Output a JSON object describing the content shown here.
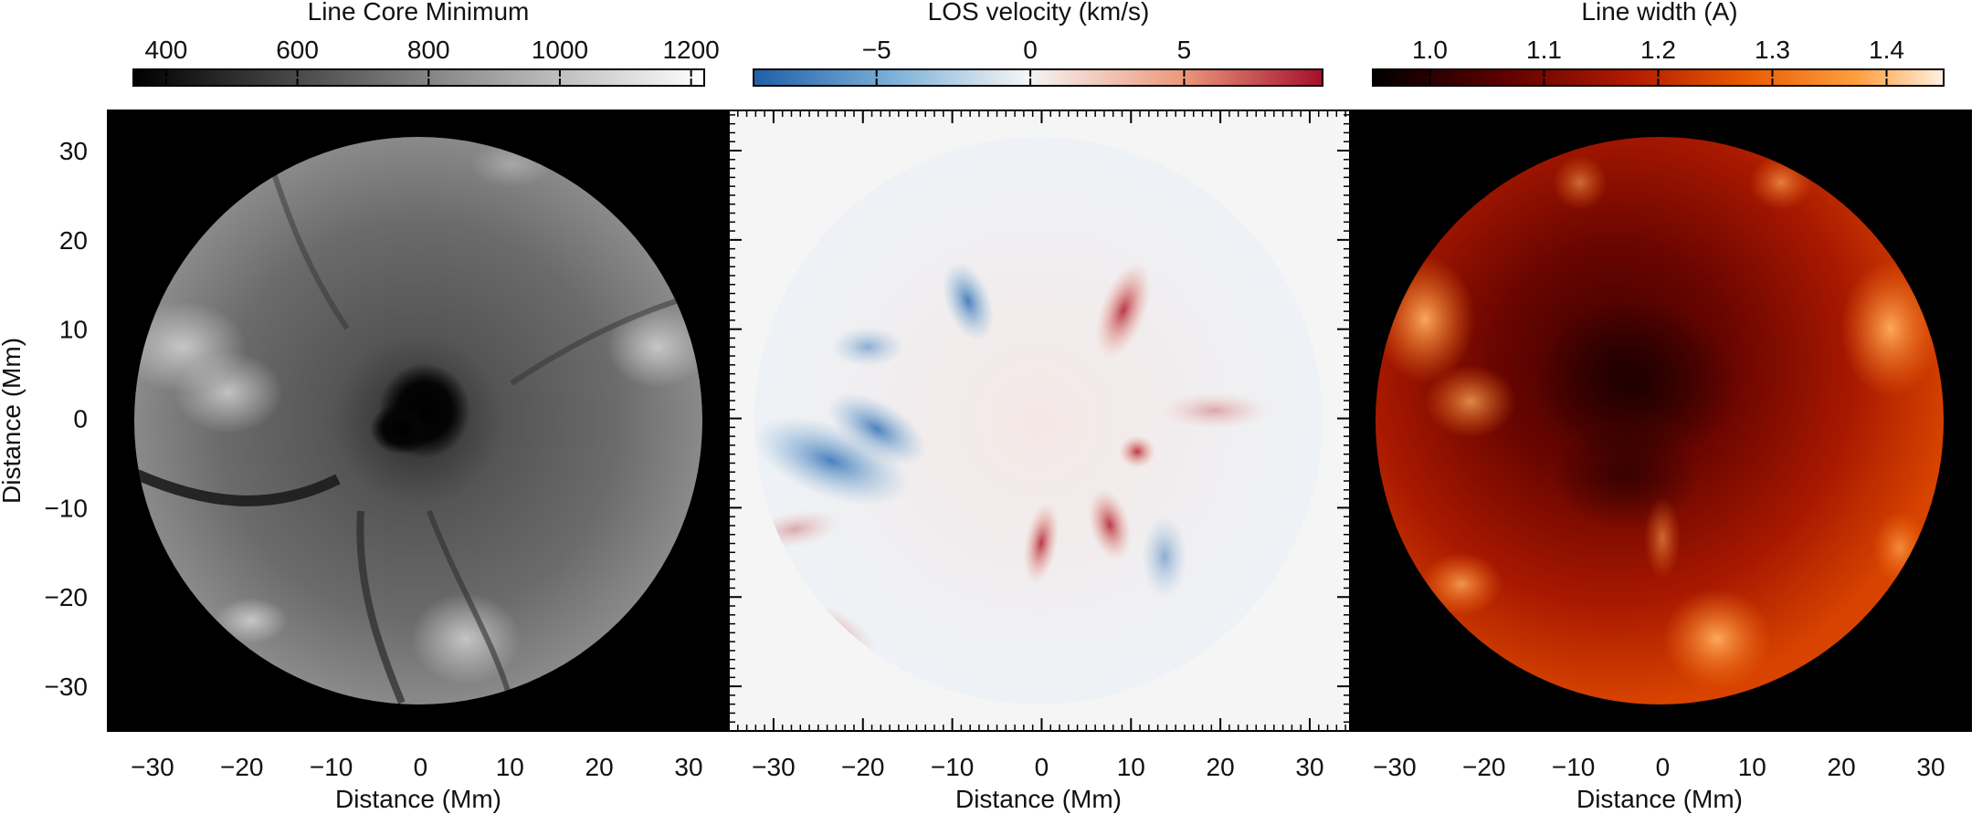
{
  "chart_data": [
    {
      "type": "heatmap",
      "title": "Line Core Minimum",
      "colormap": "gray",
      "colorbar": {
        "min": 350,
        "max": 1220,
        "ticks": [
          400,
          600,
          800,
          1000,
          1200
        ]
      },
      "xlabel": "Distance (Mm)",
      "ylabel": "Distance (Mm)",
      "xlim": [
        -35,
        34.5
      ],
      "ylim": [
        -35,
        34.5
      ],
      "xticks": [
        -30,
        -20,
        -10,
        0,
        10,
        20,
        30
      ],
      "yticks": [
        -30,
        -20,
        -10,
        0,
        10,
        20,
        30
      ],
      "field_of_view_radius_mm": 31.7,
      "outside_color": "#000000",
      "features": "dark sunspot umbra near center with radial fibrils and bright plage patches"
    },
    {
      "type": "heatmap",
      "title": "LOS velocity (km/s)",
      "colormap": "RdBu_r",
      "colorbar": {
        "min": -9,
        "max": 9.5,
        "ticks": [
          -5,
          0,
          5
        ]
      },
      "xlabel": "Distance (Mm)",
      "xlim": [
        -35,
        34.5
      ],
      "ylim": [
        -35,
        34.5
      ],
      "xticks": [
        -30,
        -20,
        -10,
        0,
        10,
        20,
        30
      ],
      "field_of_view_radius_mm": 31.7,
      "outside_color": "#f5f5f5",
      "features": "blue-shifted east side, red-shifted fibrils toward south and west"
    },
    {
      "type": "heatmap",
      "title": "Line width (A)",
      "colormap": "gist_heat",
      "colorbar": {
        "min": 0.95,
        "max": 1.45,
        "ticks": [
          1.0,
          1.1,
          1.2,
          1.3,
          1.4
        ]
      },
      "xlabel": "Distance (Mm)",
      "xlim": [
        -35,
        34.5
      ],
      "ylim": [
        -35,
        34.5
      ],
      "xticks": [
        -30,
        -20,
        -10,
        0,
        10,
        20,
        30
      ],
      "field_of_view_radius_mm": 31.7,
      "outside_color": "#000000",
      "features": "narrow line core over umbra, broad bright patches near limb"
    }
  ],
  "tick_labels": {
    "x": [
      "−30",
      "−20",
      "−10",
      "0",
      "10",
      "20",
      "30"
    ],
    "y": [
      "30",
      "20",
      "10",
      "0",
      "−10",
      "−20",
      "−30"
    ],
    "cbar": [
      [
        "400",
        "600",
        "800",
        "1000",
        "1200"
      ],
      [
        "−5",
        "0",
        "5"
      ],
      [
        "1.0",
        "1.1",
        "1.2",
        "1.3",
        "1.4"
      ]
    ]
  },
  "colors": {
    "gray": [
      "#000000",
      "#ffffff"
    ],
    "rdbu": [
      "#1f5fa8",
      "#7fb2d8",
      "#f5f5f5",
      "#ec9a7e",
      "#a50f2c"
    ],
    "heat": [
      "#000000",
      "#5a0000",
      "#b21a00",
      "#e85a00",
      "#ffa040",
      "#fff0e0"
    ]
  }
}
